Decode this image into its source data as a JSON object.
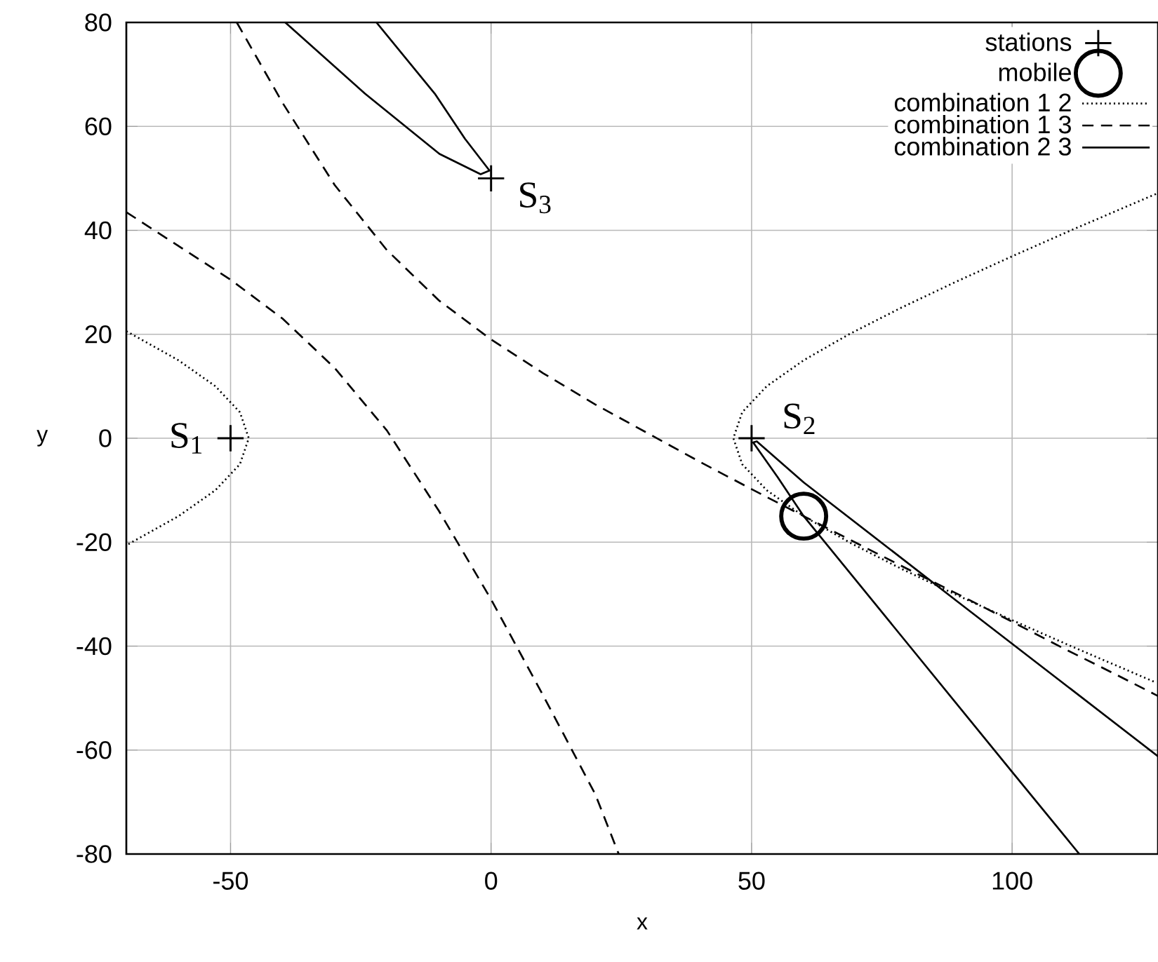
{
  "chart_data": {
    "type": "line",
    "xlabel": "x",
    "ylabel": "y",
    "xlim": [
      -70,
      128
    ],
    "ylim": [
      -80,
      80
    ],
    "xticks": [
      -50,
      0,
      50,
      100
    ],
    "yticks": [
      -80,
      -60,
      -40,
      -20,
      0,
      20,
      40,
      60,
      80
    ],
    "grid": true,
    "legend": "top right",
    "series": [
      {
        "name": "stations",
        "type": "scatter",
        "marker": "cross",
        "color": "#000000",
        "x": [
          -50,
          50,
          0
        ],
        "values": [
          0,
          0,
          50
        ]
      },
      {
        "name": "mobile",
        "type": "scatter",
        "marker": "circle",
        "color": "#000000",
        "x": [
          60
        ],
        "values": [
          -15
        ]
      },
      {
        "name": "combination 1 2",
        "line_style": "dotted",
        "color": "#000000",
        "x": [
          -70,
          -60,
          -52.9,
          -48.2,
          -46.5,
          -48.2,
          -52.9,
          -60,
          -70
        ],
        "values": [
          20.6,
          15,
          10,
          5,
          0,
          -5,
          -10,
          -15,
          -20.6
        ]
      },
      {
        "line_style": "dotted",
        "color": "#000000",
        "x": [
          127.6,
          111.3,
          100,
          89,
          78.5,
          68.7,
          60,
          52.9,
          48.2,
          46.5,
          48.2,
          52.9,
          60,
          68.7,
          78.5,
          89,
          100,
          111.3,
          127.6
        ],
        "values": [
          47,
          40,
          35,
          30,
          25,
          20,
          15,
          10,
          5,
          0,
          -5,
          -10,
          -15,
          -20,
          -25,
          -30,
          -35,
          -40,
          -47
        ]
      },
      {
        "name": "combination 1 3",
        "line_style": "dashed",
        "color": "#000000",
        "x": [
          -70,
          -60,
          -50,
          -40,
          -30,
          -20,
          -10,
          0,
          10,
          20,
          24.5
        ],
        "values": [
          43.5,
          37,
          30.5,
          23,
          13.5,
          1.5,
          -14,
          -31,
          -49.5,
          -68.5,
          -80
        ]
      },
      {
        "line_style": "dashed",
        "color": "#000000",
        "x": [
          -48.8,
          -40,
          -30,
          -20,
          -10,
          0,
          10,
          20,
          30,
          40,
          50,
          60,
          70,
          80,
          90,
          100,
          110,
          120,
          128
        ],
        "values": [
          80,
          64.5,
          48.7,
          36.2,
          26.5,
          19,
          12.5,
          6.5,
          1,
          -4.5,
          -9.8,
          -15,
          -20.1,
          -25.2,
          -30.2,
          -35.3,
          -40.5,
          -45.5,
          -49.6
        ]
      },
      {
        "name": "combination 2 3",
        "line_style": "solid",
        "color": "#000000",
        "x": [
          -39.5,
          -24.2,
          -9.9,
          -2,
          -0.3,
          -5,
          -10.8,
          -22
        ],
        "values": [
          80,
          66.3,
          54.7,
          50.8,
          51.5,
          57.6,
          66.3,
          80
        ]
      },
      {
        "line_style": "solid",
        "color": "#000000",
        "x": [
          128,
          90,
          60,
          51,
          50.3,
          55,
          60,
          80,
          100,
          112.9
        ],
        "values": [
          -61.2,
          -31.8,
          -8.5,
          -0.6,
          -0.8,
          -7.5,
          -15,
          -39.6,
          -64.2,
          -80
        ]
      }
    ],
    "annotations": [
      {
        "text": "S$_{1}$",
        "x": -50,
        "y": 0
      },
      {
        "text": "S$_{2}$",
        "x": 50,
        "y": 0
      },
      {
        "text": "S$_{3}$",
        "x": 0,
        "y": 50
      }
    ]
  }
}
